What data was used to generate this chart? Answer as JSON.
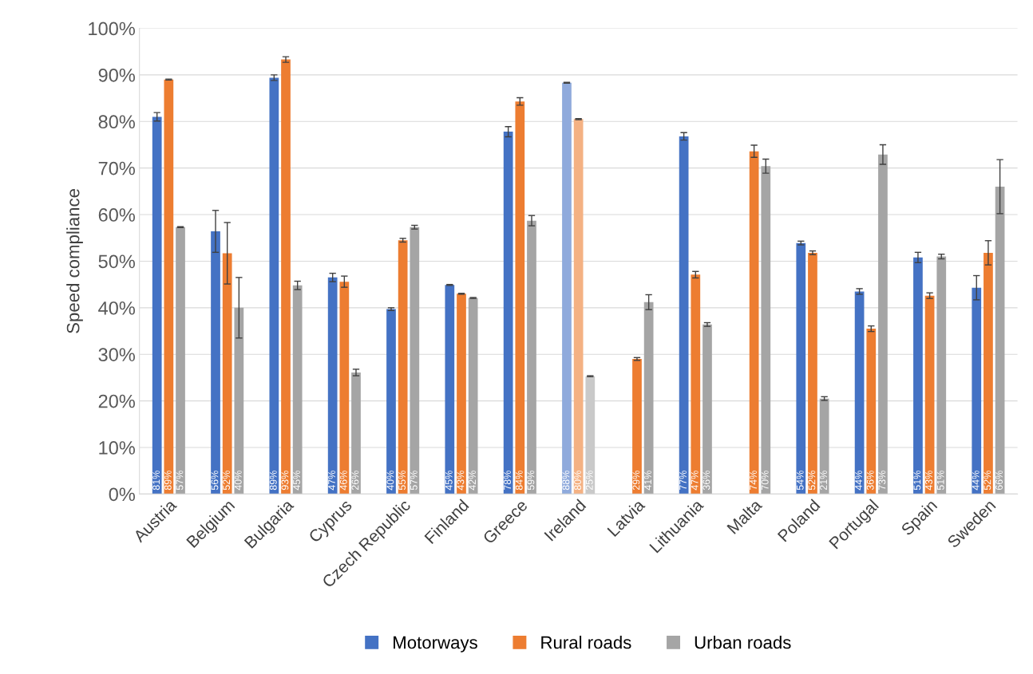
{
  "chart_data": {
    "type": "bar",
    "ylabel": "Speed compliance",
    "categories": [
      "Austria",
      "Belgium",
      "Bulgaria",
      "Cyprus",
      "Czech Republic",
      "Finland",
      "Greece",
      "Ireland",
      "Latvia",
      "Lithuania",
      "Malta",
      "Poland",
      "Portugal",
      "Spain",
      "Sweden"
    ],
    "series": [
      {
        "name": "Motorways",
        "color": "#4472c4",
        "colors": [
          "#4472c4",
          "#4472c4",
          "#4472c4",
          "#4472c4",
          "#4472c4",
          "#4472c4",
          "#4472c4",
          "#8faadc",
          "#4472c4",
          "#4472c4",
          "#4472c4",
          "#4472c4",
          "#4472c4",
          "#4472c4",
          "#4472c4"
        ],
        "values": [
          81.0,
          56.4,
          89.4,
          46.5,
          39.7,
          44.9,
          77.8,
          88.3,
          null,
          76.8,
          null,
          53.9,
          43.5,
          50.8,
          44.3
        ],
        "errors": [
          0.9,
          4.5,
          0.6,
          0.9,
          0.3,
          0.1,
          1.1,
          0.1,
          null,
          0.8,
          null,
          0.4,
          0.6,
          1.1,
          2.6
        ],
        "value_labels": [
          "81%",
          "56%",
          "89%",
          "47%",
          "40%",
          "45%",
          "78%",
          "88%",
          null,
          "77%",
          null,
          "54%",
          "44%",
          "51%",
          "44%"
        ]
      },
      {
        "name": "Rural roads",
        "color": "#ed7d31",
        "colors": [
          "#ed7d31",
          "#ed7d31",
          "#ed7d31",
          "#ed7d31",
          "#ed7d31",
          "#ed7d31",
          "#ed7d31",
          "#f4b183",
          "#ed7d31",
          "#ed7d31",
          "#ed7d31",
          "#ed7d31",
          "#ed7d31",
          "#ed7d31",
          "#ed7d31"
        ],
        "values": [
          89.0,
          51.7,
          93.3,
          45.6,
          54.5,
          43.0,
          84.3,
          80.5,
          29.0,
          47.1,
          73.6,
          51.8,
          35.5,
          42.6,
          51.8
        ],
        "errors": [
          0.1,
          6.6,
          0.6,
          1.2,
          0.4,
          0.1,
          0.8,
          0.1,
          0.3,
          0.7,
          1.3,
          0.4,
          0.6,
          0.6,
          2.6
        ],
        "value_labels": [
          "89%",
          "52%",
          "93%",
          "46%",
          "55%",
          "43%",
          "84%",
          "80%",
          "29%",
          "47%",
          "74%",
          "52%",
          "36%",
          "43%",
          "52%"
        ]
      },
      {
        "name": "Urban roads",
        "color": "#a5a5a5",
        "colors": [
          "#a5a5a5",
          "#a5a5a5",
          "#a5a5a5",
          "#a5a5a5",
          "#a5a5a5",
          "#a5a5a5",
          "#a5a5a5",
          "#c9c9c9",
          "#a5a5a5",
          "#a5a5a5",
          "#a5a5a5",
          "#a5a5a5",
          "#a5a5a5",
          "#a5a5a5",
          "#a5a5a5"
        ],
        "values": [
          57.3,
          40.0,
          44.8,
          26.1,
          57.3,
          42.1,
          58.7,
          25.3,
          41.2,
          36.4,
          70.4,
          20.5,
          72.9,
          51.0,
          66.0
        ],
        "errors": [
          0.1,
          6.5,
          0.9,
          0.7,
          0.4,
          0.1,
          1.1,
          0.1,
          1.6,
          0.4,
          1.5,
          0.4,
          2.1,
          0.5,
          5.8
        ],
        "value_labels": [
          "57%",
          "40%",
          "45%",
          "26%",
          "57%",
          "42%",
          "59%",
          "25%",
          "41%",
          "36%",
          "70%",
          "21%",
          "73%",
          "51%",
          "66%"
        ]
      }
    ],
    "ylim": [
      0,
      100
    ],
    "yticks": [
      {
        "value": 0,
        "label": "0%"
      },
      {
        "value": 10,
        "label": "10%"
      },
      {
        "value": 20,
        "label": "20%"
      },
      {
        "value": 30,
        "label": "30%"
      },
      {
        "value": 40,
        "label": "40%"
      },
      {
        "value": 50,
        "label": "50%"
      },
      {
        "value": 60,
        "label": "60%"
      },
      {
        "value": 70,
        "label": "70%"
      },
      {
        "value": 80,
        "label": "80%"
      },
      {
        "value": 90,
        "label": "90%"
      },
      {
        "value": 100,
        "label": "100%"
      }
    ],
    "grid": "y",
    "legend": "bottom"
  }
}
